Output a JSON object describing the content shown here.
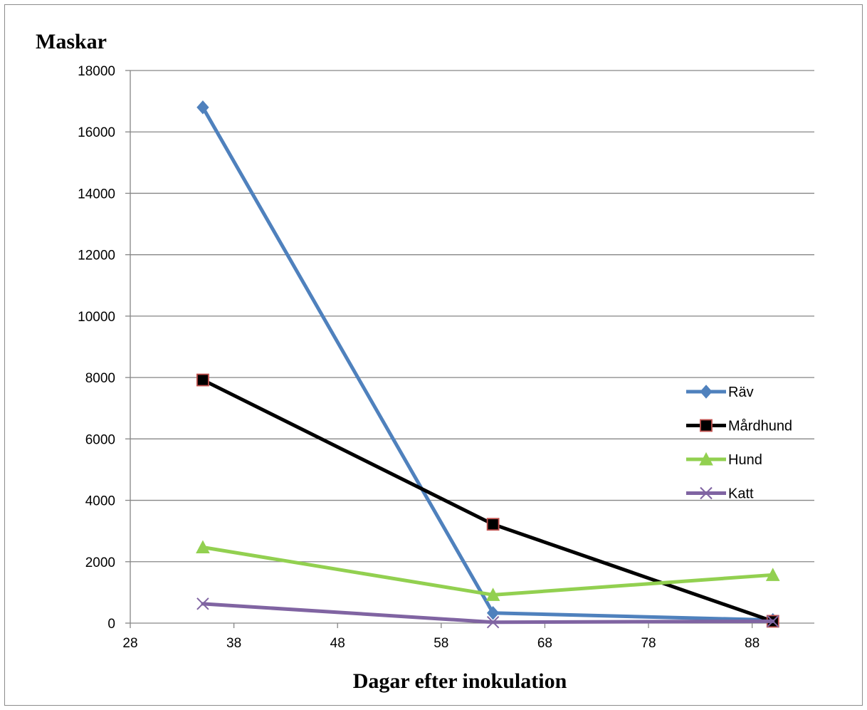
{
  "chart_data": {
    "type": "scatter",
    "ylabel": "Maskar",
    "xlabel": "Dagar efter inokulation",
    "xlim": [
      28,
      94
    ],
    "ylim": [
      0,
      18000
    ],
    "x_ticks": [
      28,
      38,
      48,
      58,
      68,
      78,
      88
    ],
    "y_ticks": [
      0,
      2000,
      4000,
      6000,
      8000,
      10000,
      12000,
      14000,
      16000,
      18000
    ],
    "grid": "horizontal",
    "legend_position": "right",
    "x": [
      35,
      63,
      90
    ],
    "series": [
      {
        "name": "Räv",
        "values": [
          16800,
          330,
          100
        ],
        "color": "#4f81bd",
        "marker": "diamond"
      },
      {
        "name": "Mårdhund",
        "values": [
          7920,
          3220,
          60
        ],
        "color": "#000000",
        "marker": "square"
      },
      {
        "name": "Hund",
        "values": [
          2470,
          920,
          1570
        ],
        "color": "#92d050",
        "marker": "triangle"
      },
      {
        "name": "Katt",
        "values": [
          630,
          30,
          60
        ],
        "color": "#8064a2",
        "marker": "x"
      }
    ]
  }
}
